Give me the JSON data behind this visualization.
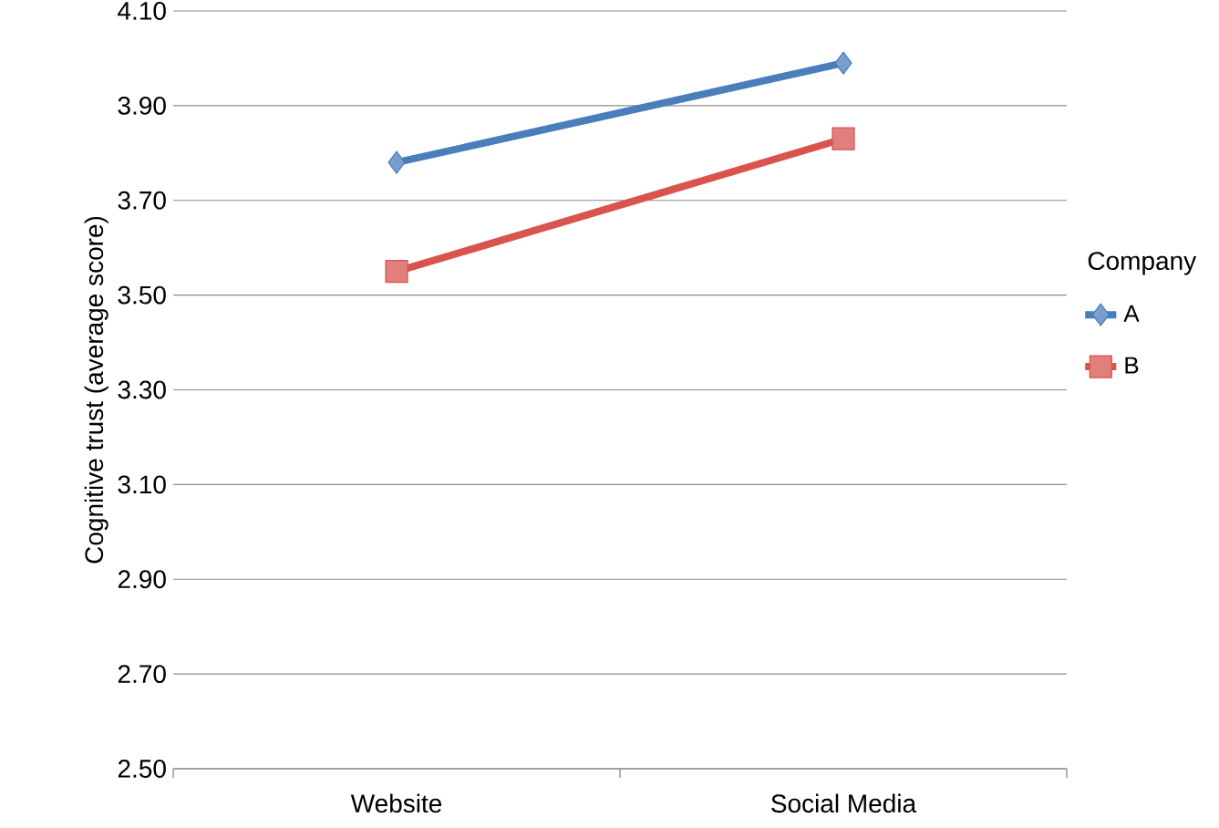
{
  "chart_data": {
    "type": "line",
    "ylabel": "Cognitive trust (average score)",
    "legend_title": "Company",
    "categories": [
      "Website",
      "Social Media"
    ],
    "series": [
      {
        "name": "A",
        "color": "#4a7ebb",
        "marker": "diamond",
        "values": [
          3.78,
          3.99
        ]
      },
      {
        "name": "B",
        "color": "#d9534f",
        "marker": "square",
        "values": [
          3.55,
          3.83
        ]
      }
    ],
    "ylim": [
      2.5,
      4.1
    ],
    "yticks": [
      {
        "value": 2.5,
        "label": "2.50"
      },
      {
        "value": 2.7,
        "label": "2.70"
      },
      {
        "value": 2.9,
        "label": "2.90"
      },
      {
        "value": 3.1,
        "label": "3.10"
      },
      {
        "value": 3.3,
        "label": "3.30"
      },
      {
        "value": 3.5,
        "label": "3.50"
      },
      {
        "value": 3.7,
        "label": "3.70"
      },
      {
        "value": 3.9,
        "label": "3.90"
      },
      {
        "value": 4.1,
        "label": "4.10"
      }
    ],
    "grid": "y",
    "legend": "right",
    "line_style": "solid"
  }
}
